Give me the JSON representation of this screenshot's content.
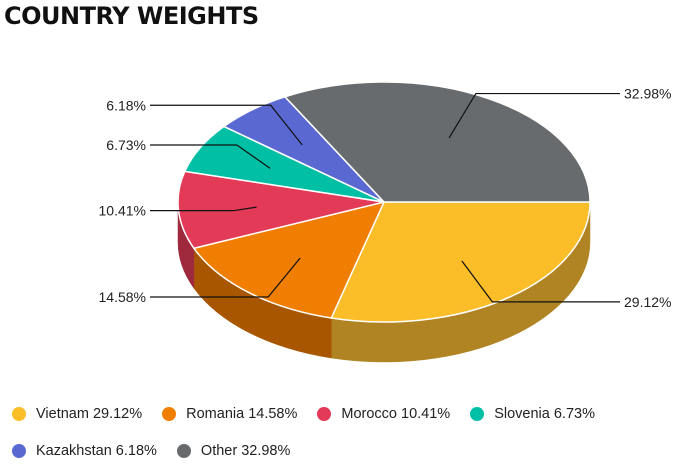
{
  "title": "COUNTRY WEIGHTS",
  "chart_data": {
    "type": "pie",
    "title": "COUNTRY WEIGHTS",
    "legend_position": "bottom",
    "slices": [
      {
        "label": "Vietnam",
        "value": 29.12,
        "display": "29.12%",
        "legend": "Vietnam 29.12%",
        "color": "#fbbd28",
        "side_color": "#b08422"
      },
      {
        "label": "Romania",
        "value": 14.58,
        "display": "14.58%",
        "legend": "Romania 14.58%",
        "color": "#f07e02",
        "side_color": "#a85700"
      },
      {
        "label": "Morocco",
        "value": 10.41,
        "display": "10.41%",
        "legend": "Morocco 10.41%",
        "color": "#e23a57",
        "side_color": "#9e283c"
      },
      {
        "label": "Slovenia",
        "value": 6.73,
        "display": "6.73%",
        "legend": "Slovenia 6.73%",
        "color": "#00bfa5",
        "side_color": "#008573"
      },
      {
        "label": "Kazakhstan",
        "value": 6.18,
        "display": "6.18%",
        "legend": "Kazakhstan 6.18%",
        "color": "#5a68d1",
        "side_color": "#3f4992"
      },
      {
        "label": "Other",
        "value": 32.98,
        "display": "32.98%",
        "legend": "Other 32.98%",
        "color": "#676b6e",
        "side_color": "#484b4d"
      }
    ]
  }
}
